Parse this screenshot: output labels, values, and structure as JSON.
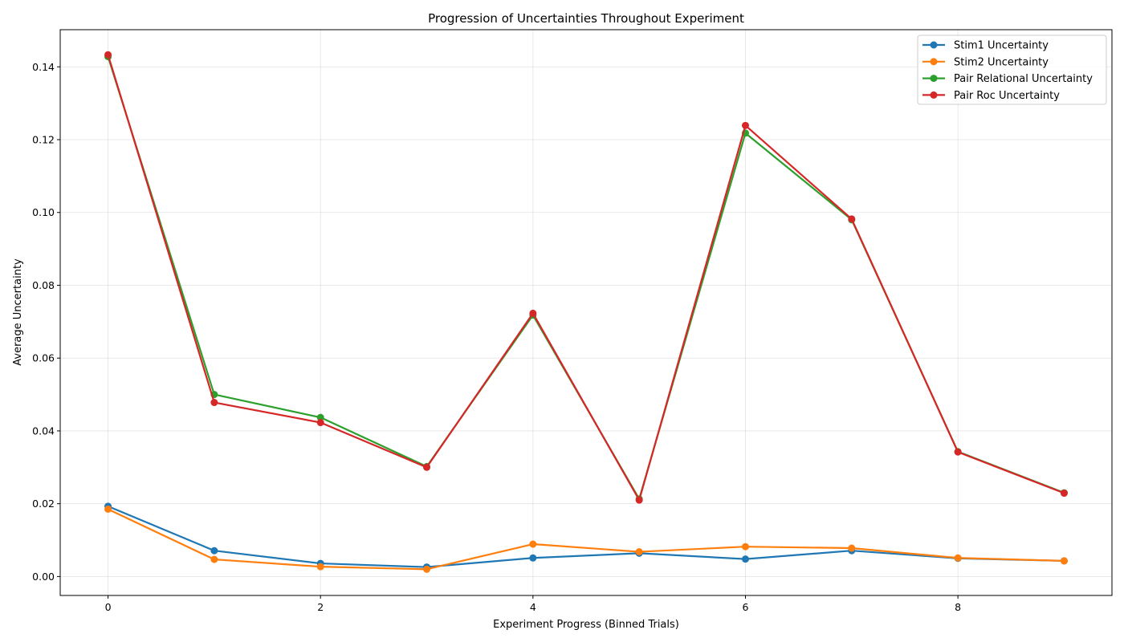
{
  "chart_data": {
    "type": "line",
    "title": "Progression of Uncertainties Throughout Experiment",
    "xlabel": "Experiment Progress (Binned Trials)",
    "ylabel": "Average Uncertainty",
    "x": [
      0,
      1,
      2,
      3,
      4,
      5,
      6,
      7,
      8,
      9
    ],
    "xlim": [
      -0.45,
      9.45
    ],
    "ylim": [
      -0.0052,
      0.1502
    ],
    "xticks": [
      0,
      2,
      4,
      6,
      8
    ],
    "yticks": [
      0.0,
      0.02,
      0.04,
      0.06,
      0.08,
      0.1,
      0.12,
      0.14
    ],
    "ytick_labels": [
      "0.00",
      "0.02",
      "0.04",
      "0.06",
      "0.08",
      "0.10",
      "0.12",
      "0.14"
    ],
    "grid": true,
    "legend_position": "top-right",
    "series": [
      {
        "name": "Stim1 Uncertainty",
        "color": "#1f77b4",
        "values": [
          0.0193,
          0.0071,
          0.0036,
          0.0026,
          0.0051,
          0.0064,
          0.0048,
          0.0071,
          0.005,
          0.0043
        ]
      },
      {
        "name": "Stim2 Uncertainty",
        "color": "#ff7f0e",
        "values": [
          0.0185,
          0.0047,
          0.0027,
          0.002,
          0.0089,
          0.0068,
          0.0082,
          0.0078,
          0.0051,
          0.0043
        ]
      },
      {
        "name": "Pair Relational Uncertainty",
        "color": "#2ca02c",
        "values": [
          0.1428,
          0.05,
          0.0437,
          0.0302,
          0.0718,
          0.0213,
          0.1218,
          0.098,
          0.0343,
          0.023
        ]
      },
      {
        "name": "Pair Roc Uncertainty",
        "color": "#d62728",
        "values": [
          0.1433,
          0.0478,
          0.0423,
          0.03,
          0.0723,
          0.021,
          0.1239,
          0.0982,
          0.0342,
          0.0229
        ]
      }
    ]
  }
}
